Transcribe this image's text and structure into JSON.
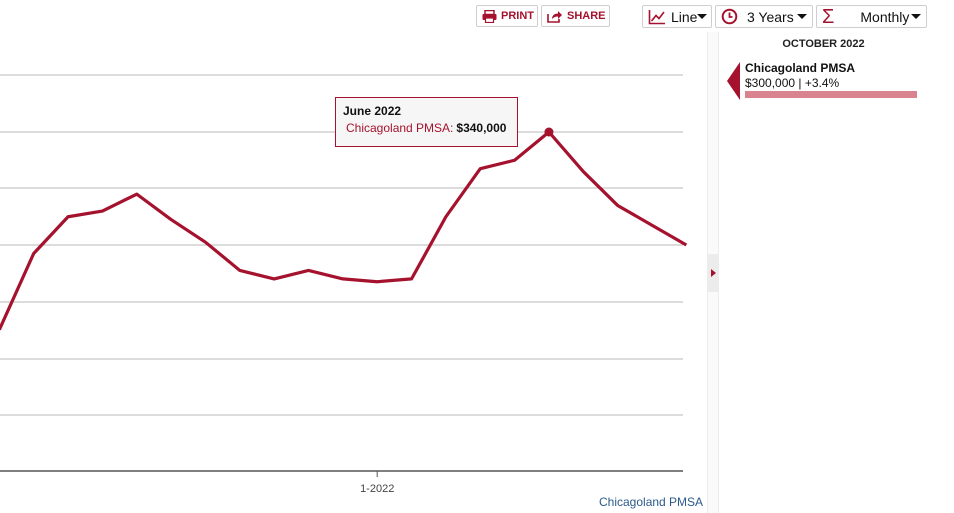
{
  "toolbar": {
    "print_label": "PRINT",
    "share_label": "SHARE",
    "chart_type": "Line",
    "period": "3 Years",
    "frequency": "Monthly",
    "accent_color": "#a5122e"
  },
  "tooltip": {
    "date": "June 2022",
    "series": "Chicagoland PMSA:",
    "value": "$340,000"
  },
  "panel": {
    "date": "OCTOBER 2022",
    "series": "Chicagoland PMSA",
    "value": "$300,000 | +3.4%",
    "bar_color": "#d9838f"
  },
  "source_label": "Chicagoland PMSA",
  "chart_data": {
    "type": "line",
    "title": "",
    "xlabel": "",
    "ylabel": "",
    "x_tick_labels": [
      "1-2022"
    ],
    "grid": true,
    "series": [
      {
        "name": "Chicagoland PMSA",
        "color": "#a5122e",
        "x": [
          "2021-02",
          "2021-03",
          "2021-04",
          "2021-05",
          "2021-06",
          "2021-07",
          "2021-08",
          "2021-09",
          "2021-10",
          "2021-11",
          "2021-12",
          "2022-01",
          "2022-02",
          "2022-03",
          "2022-04",
          "2022-05",
          "2022-06",
          "2022-07",
          "2022-08",
          "2022-09",
          "2022-10"
        ],
        "values": [
          270000,
          297000,
          310000,
          312000,
          318000,
          309000,
          301000,
          291000,
          288000,
          291000,
          288000,
          287000,
          288000,
          310000,
          327000,
          330000,
          340000,
          326000,
          314000,
          307000,
          300000
        ]
      }
    ],
    "highlight": {
      "x": "2022-06",
      "value": 340000
    }
  }
}
